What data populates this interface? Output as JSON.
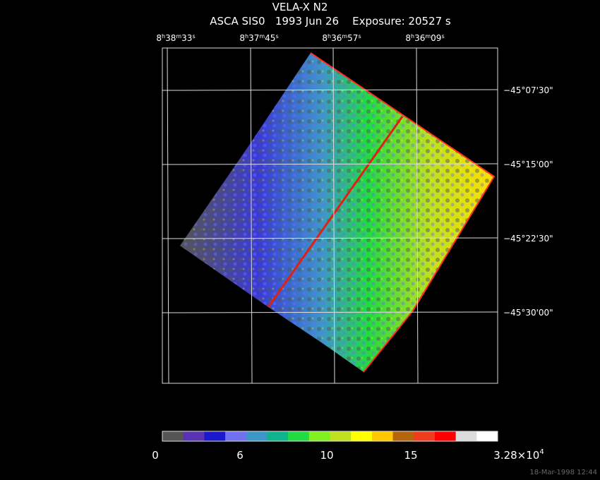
{
  "header": {
    "title": "VELA-X N2",
    "subtitle": "ASCA SIS0   1993 Jun 26    Exposure: 20527 s"
  },
  "ra_labels": [
    {
      "hours": "8",
      "minutes": "38",
      "seconds": "33"
    },
    {
      "hours": "8",
      "minutes": "37",
      "seconds": "45"
    },
    {
      "hours": "8",
      "minutes": "36",
      "seconds": "57"
    },
    {
      "hours": "8",
      "minutes": "36",
      "seconds": "09"
    }
  ],
  "ra_units": {
    "h": "h",
    "m": "m",
    "s": "s"
  },
  "dec_labels": [
    "−45°07'30\"",
    "−45°15'00\"",
    "−45°22'30\"",
    "−45°30'00\""
  ],
  "colorbar": {
    "colors": [
      "#555555",
      "#5a32b4",
      "#1a1acc",
      "#7070f0",
      "#3c96c8",
      "#10b48c",
      "#20dc40",
      "#80f020",
      "#c0e020",
      "#ffff00",
      "#ffc800",
      "#b4640a",
      "#f03c1e",
      "#ff0000",
      "#dcdcdc",
      "#ffffff"
    ],
    "labels": [
      "0",
      "6",
      "10",
      "15"
    ],
    "max_label": {
      "mantissa": "3.28×10",
      "exponent": "4"
    }
  },
  "footer": {
    "timestamp": "18-Mar-1998 12:44"
  }
}
